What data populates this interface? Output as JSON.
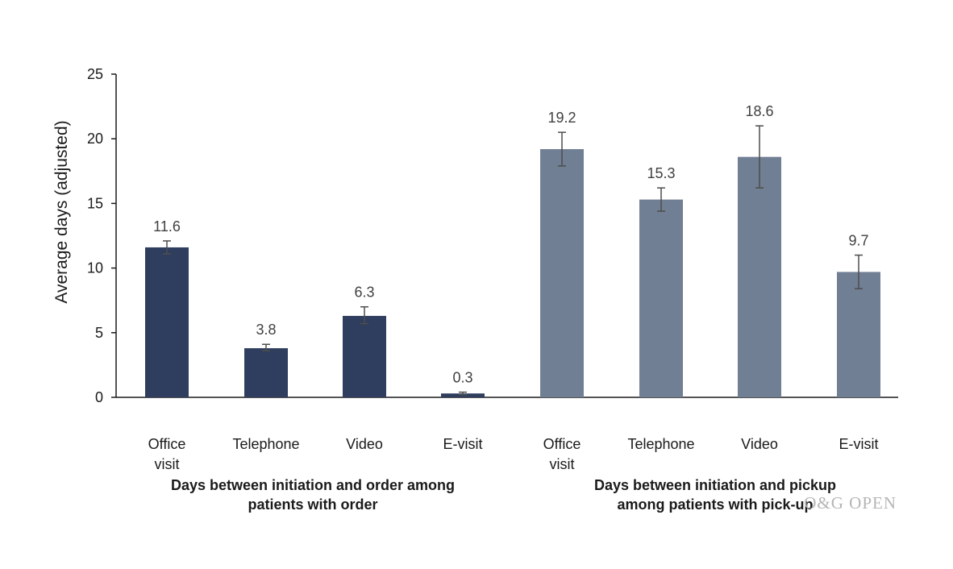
{
  "chart_data": {
    "type": "bar",
    "ylabel": "Average  days (adjusted)",
    "ylim": [
      0,
      25
    ],
    "yticks": [
      0,
      5,
      10,
      15,
      20,
      25
    ],
    "grid": false,
    "groups": [
      {
        "label_lines": [
          "Days between initiation and order among",
          "patients with order"
        ],
        "color": "#2f3e5e",
        "categories": [
          [
            "Office",
            "visit"
          ],
          [
            "Telephone"
          ],
          [
            "Video"
          ],
          [
            "E-visit"
          ]
        ],
        "values": [
          11.6,
          3.8,
          6.3,
          0.3
        ],
        "labels": [
          "11.6",
          "3.8",
          "6.3",
          "0.3"
        ],
        "error": [
          [
            11.1,
            12.1
          ],
          [
            3.6,
            4.1
          ],
          [
            5.7,
            7.0
          ],
          [
            0.2,
            0.4
          ]
        ]
      },
      {
        "label_lines": [
          "Days between initiation and pickup",
          "among patients with pick-up"
        ],
        "color": "#717f94",
        "categories": [
          [
            "Office",
            "visit"
          ],
          [
            "Telephone"
          ],
          [
            "Video"
          ],
          [
            "E-visit"
          ]
        ],
        "values": [
          19.2,
          15.3,
          18.6,
          9.7
        ],
        "labels": [
          "19.2",
          "15.3",
          "18.6",
          "9.7"
        ],
        "error": [
          [
            17.9,
            20.5
          ],
          [
            14.4,
            16.2
          ],
          [
            16.2,
            21.0
          ],
          [
            8.4,
            11.0
          ]
        ]
      }
    ]
  },
  "watermark": "O&G OPEN"
}
